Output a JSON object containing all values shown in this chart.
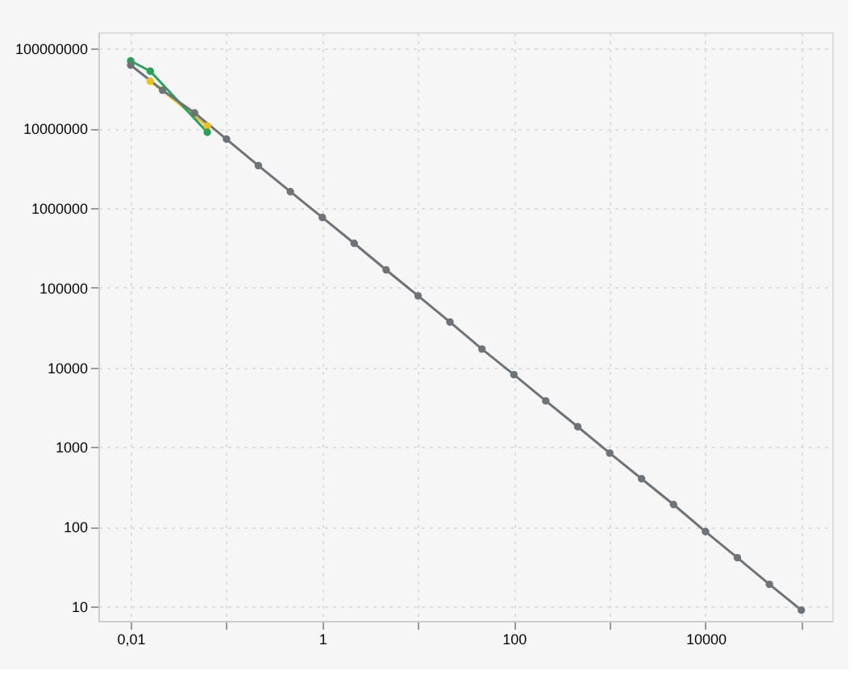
{
  "chart_data": {
    "type": "line",
    "x": [
      0.01,
      0.0215,
      0.0464,
      0.1,
      0.215,
      0.464,
      1,
      2.15,
      4.64,
      10,
      21.5,
      46.4,
      100,
      215,
      464,
      1000,
      2150,
      4640,
      10000,
      21500,
      46400,
      100000
    ],
    "series": [
      {
        "color": "#e8c02a",
        "x": [
          0.016,
          0.063
        ],
        "values": [
          39000000,
          10700000
        ]
      },
      {
        "color": "#2ca05a",
        "x": [
          0.01,
          0.016,
          0.063
        ],
        "values": [
          70000000,
          52000000,
          8900000
        ]
      },
      {
        "color": "#6e7378",
        "values": [
          62000000,
          30000000,
          15600000,
          7300000,
          3400000,
          1600000,
          760000,
          360000,
          167000,
          79000,
          37000,
          17000,
          8100,
          3800,
          1800,
          840,
          400,
          190,
          87,
          41,
          19,
          9
        ]
      }
    ],
    "log": "xy",
    "xlim": [
      0.0046,
      210000
    ],
    "xticks": [
      {
        "value": 0.01,
        "label": "0,01"
      },
      {
        "value": 0.1,
        "label": null
      },
      1,
      {
        "value": 10,
        "label": null
      },
      100,
      {
        "value": 1000,
        "label": null
      },
      10000,
      {
        "value": 100000,
        "label": null
      }
    ],
    "ylim": [
      6.6,
      160000000
    ],
    "yticks": [
      10,
      100,
      1000,
      10000,
      100000,
      1000000,
      10000000,
      100000000
    ],
    "grid": true,
    "marker": "circle",
    "line_style": "solid"
  }
}
